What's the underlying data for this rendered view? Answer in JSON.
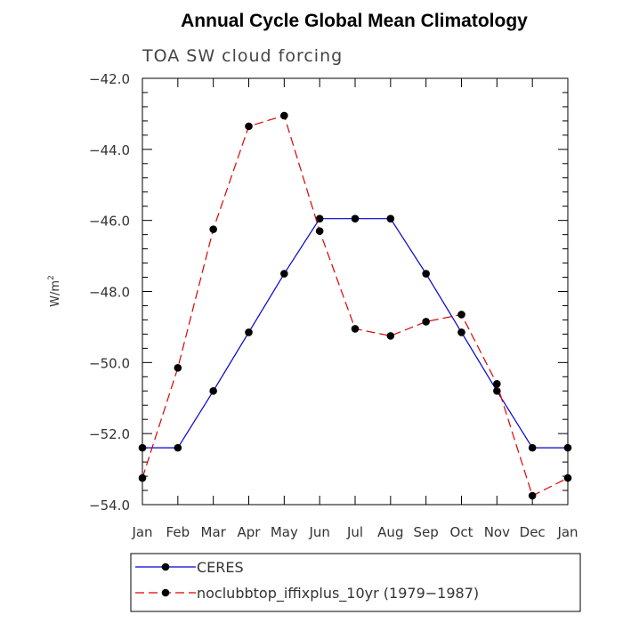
{
  "chart_data": {
    "type": "line",
    "title": "Annual Cycle Global Mean Climatology",
    "subtitle": "TOA SW cloud forcing",
    "xlabel": "",
    "ylabel": "W/m",
    "ylabel_superscript": "2",
    "ylim": [
      -54.0,
      -42.0
    ],
    "yticks": [
      -54.0,
      -52.0,
      -50.0,
      -48.0,
      -46.0,
      -44.0,
      -42.0
    ],
    "ytick_labels": [
      "−54.0",
      "−52.0",
      "−50.0",
      "−48.0",
      "−46.0",
      "−44.0",
      "−42.0"
    ],
    "categories": [
      "Jan",
      "Feb",
      "Mar",
      "Apr",
      "May",
      "Jun",
      "Jul",
      "Aug",
      "Sep",
      "Oct",
      "Nov",
      "Dec",
      "Jan"
    ],
    "series": [
      {
        "name": "CERES",
        "color": "#0000cc",
        "dash": "solid",
        "values": [
          -52.4,
          -52.4,
          -50.8,
          -49.15,
          -47.5,
          -45.95,
          -45.95,
          -45.95,
          -47.5,
          -49.15,
          -50.8,
          -52.4,
          -52.4
        ]
      },
      {
        "name": "noclubbtop_iffixplus_10yr (1979−1987)",
        "color": "#dd0000",
        "dash": "dashed",
        "values": [
          -53.25,
          -50.15,
          -46.25,
          -43.35,
          -43.05,
          -46.3,
          -49.05,
          -49.25,
          -48.85,
          -48.65,
          -50.6,
          -53.75,
          -53.25
        ]
      }
    ],
    "legend_location": "bottom"
  }
}
